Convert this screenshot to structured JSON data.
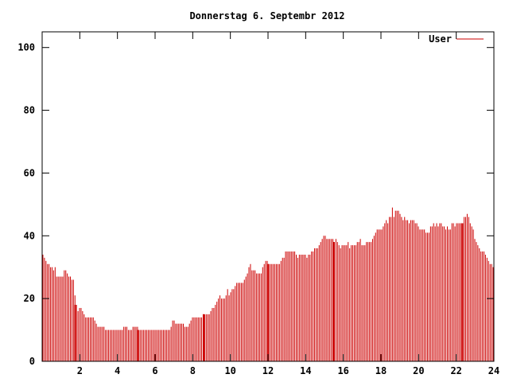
{
  "chart_data": {
    "type": "bar",
    "title": "Donnerstag 6. Septembr 2012",
    "xlabel": "",
    "ylabel": "",
    "xlim": [
      0,
      24
    ],
    "ylim": [
      0,
      105
    ],
    "xticks": [
      "2",
      "4",
      "6",
      "8",
      "10",
      "12",
      "14",
      "16",
      "18",
      "20",
      "22",
      "24"
    ],
    "yticks": [
      "0",
      "20",
      "40",
      "60",
      "80",
      "100"
    ],
    "legend": "top-right",
    "grid": false,
    "series": [
      {
        "name": "User",
        "color": "#cc0000",
        "step_hours": 0.0833,
        "values": [
          34,
          33,
          32,
          31,
          31,
          30,
          30,
          29,
          30,
          27,
          27,
          27,
          27,
          27,
          29,
          29,
          28,
          27,
          27,
          26,
          26,
          21,
          18,
          16,
          17,
          17,
          16,
          15,
          14,
          14,
          14,
          14,
          14,
          14,
          13,
          12,
          11,
          11,
          11,
          11,
          11,
          10,
          10,
          10,
          10,
          10,
          10,
          10,
          10,
          10,
          10,
          10,
          10,
          11,
          11,
          11,
          10,
          10,
          10,
          11,
          11,
          11,
          11,
          10,
          10,
          10,
          10,
          10,
          10,
          10,
          10,
          10,
          10,
          10,
          10,
          10,
          10,
          10,
          10,
          10,
          10,
          10,
          10,
          10,
          11,
          13,
          13,
          12,
          12,
          12,
          12,
          12,
          12,
          11,
          11,
          11,
          12,
          13,
          14,
          14,
          14,
          14,
          14,
          14,
          14,
          15,
          15,
          15,
          15,
          15,
          16,
          17,
          17,
          18,
          19,
          20,
          21,
          20,
          20,
          20,
          21,
          23,
          21,
          22,
          23,
          23,
          24,
          25,
          25,
          25,
          25,
          25,
          26,
          27,
          28,
          30,
          31,
          29,
          29,
          29,
          28,
          28,
          28,
          28,
          30,
          31,
          32,
          32,
          31,
          31,
          31,
          31,
          31,
          31,
          31,
          31,
          32,
          33,
          33,
          35,
          35,
          35,
          35,
          35,
          35,
          35,
          34,
          33,
          34,
          34,
          34,
          34,
          34,
          33,
          34,
          34,
          35,
          35,
          36,
          36,
          36,
          37,
          38,
          39,
          40,
          40,
          39,
          39,
          39,
          39,
          39,
          38,
          39,
          38,
          37,
          36,
          37,
          37,
          37,
          37,
          38,
          36,
          37,
          37,
          37,
          37,
          38,
          38,
          39,
          37,
          37,
          37,
          38,
          38,
          38,
          38,
          39,
          40,
          41,
          42,
          42,
          42,
          42,
          43,
          44,
          45,
          44,
          46,
          46,
          49,
          46,
          48,
          48,
          48,
          47,
          46,
          45,
          46,
          45,
          45,
          44,
          45,
          45,
          45,
          44,
          44,
          43,
          42,
          42,
          42,
          42,
          41,
          41,
          41,
          43,
          43,
          44,
          43,
          44,
          43,
          44,
          44,
          43,
          43,
          42,
          43,
          42,
          42,
          44,
          44,
          43,
          44,
          44,
          44,
          44,
          44,
          46,
          46,
          47,
          46,
          44,
          43,
          42,
          39,
          38,
          37,
          36,
          35,
          35,
          35,
          34,
          33,
          32,
          31,
          31,
          30
        ],
        "highlighted_hours": [
          1.75,
          5.08,
          8.58,
          12.0,
          15.5,
          22.33
        ]
      }
    ]
  }
}
